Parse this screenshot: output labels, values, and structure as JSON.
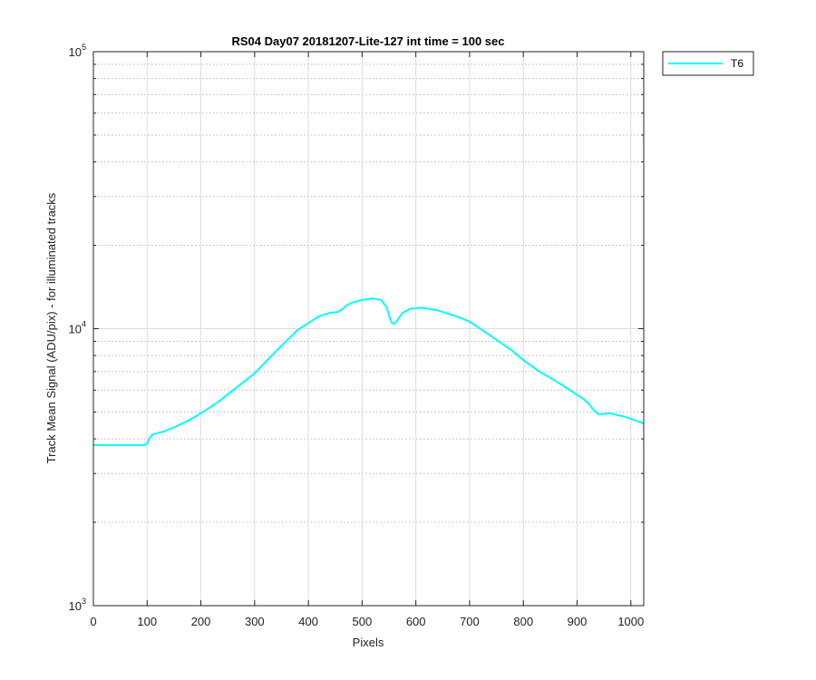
{
  "chart_data": {
    "type": "line",
    "title": "RS04 Day07 20181207-Lite-127 int time = 100 sec",
    "xlabel": "Pixels",
    "ylabel": "Track Mean Signal (ADU/pix) - for illuminated tracks",
    "xlim": [
      0,
      1024
    ],
    "ylim": [
      1000,
      100000
    ],
    "yscale": "log",
    "grid": true,
    "xticks": [
      0,
      100,
      200,
      300,
      400,
      500,
      600,
      700,
      800,
      900,
      1000
    ],
    "xtick_labels": [
      "0",
      "100",
      "200",
      "300",
      "400",
      "500",
      "600",
      "700",
      "800",
      "900",
      "1000"
    ],
    "yticks": [
      {
        "value": 1000,
        "base": "10",
        "exp": "3"
      },
      {
        "value": 10000,
        "base": "10",
        "exp": "4"
      },
      {
        "value": 100000,
        "base": "10",
        "exp": "5"
      }
    ],
    "legend_position": "outside-top-right",
    "series": [
      {
        "name": "T6",
        "color": "#00ffff",
        "x": [
          0,
          50,
          95,
          100,
          105,
          110,
          130,
          150,
          180,
          200,
          230,
          260,
          300,
          340,
          380,
          420,
          440,
          455,
          465,
          470,
          480,
          500,
          520,
          535,
          545,
          550,
          555,
          560,
          565,
          575,
          590,
          610,
          640,
          680,
          700,
          740,
          780,
          800,
          830,
          870,
          910,
          920,
          930,
          940,
          960,
          990,
          1024
        ],
        "y": [
          3800,
          3800,
          3800,
          3850,
          4050,
          4150,
          4250,
          4400,
          4700,
          4950,
          5400,
          6000,
          6900,
          8300,
          9900,
          11100,
          11400,
          11500,
          11800,
          12100,
          12400,
          12700,
          12850,
          12700,
          12000,
          11200,
          10500,
          10400,
          10700,
          11400,
          11800,
          11900,
          11650,
          11000,
          10600,
          9400,
          8300,
          7700,
          7000,
          6300,
          5600,
          5400,
          5100,
          4900,
          4950,
          4800,
          4550
        ]
      }
    ]
  }
}
